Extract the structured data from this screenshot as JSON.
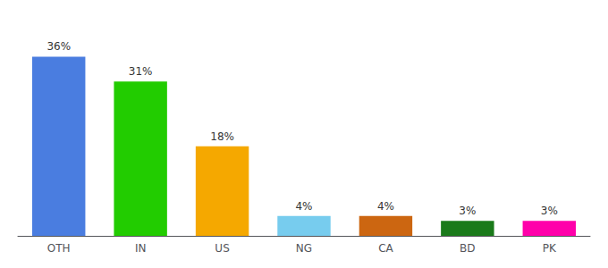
{
  "chart_data": {
    "type": "bar",
    "categories": [
      "OTH",
      "IN",
      "US",
      "NG",
      "CA",
      "BD",
      "PK"
    ],
    "values": [
      36,
      31,
      18,
      4,
      4,
      3,
      3
    ],
    "value_labels": [
      "36%",
      "31%",
      "18%",
      "4%",
      "4%",
      "3%",
      "3%"
    ],
    "colors": [
      "#4a7de0",
      "#22cc00",
      "#f5a800",
      "#77ccee",
      "#cc6611",
      "#1a7a1a",
      "#ff00aa"
    ],
    "ylim": [
      0,
      42
    ],
    "grid": false,
    "data_labels": true,
    "tick_labels": "x"
  }
}
